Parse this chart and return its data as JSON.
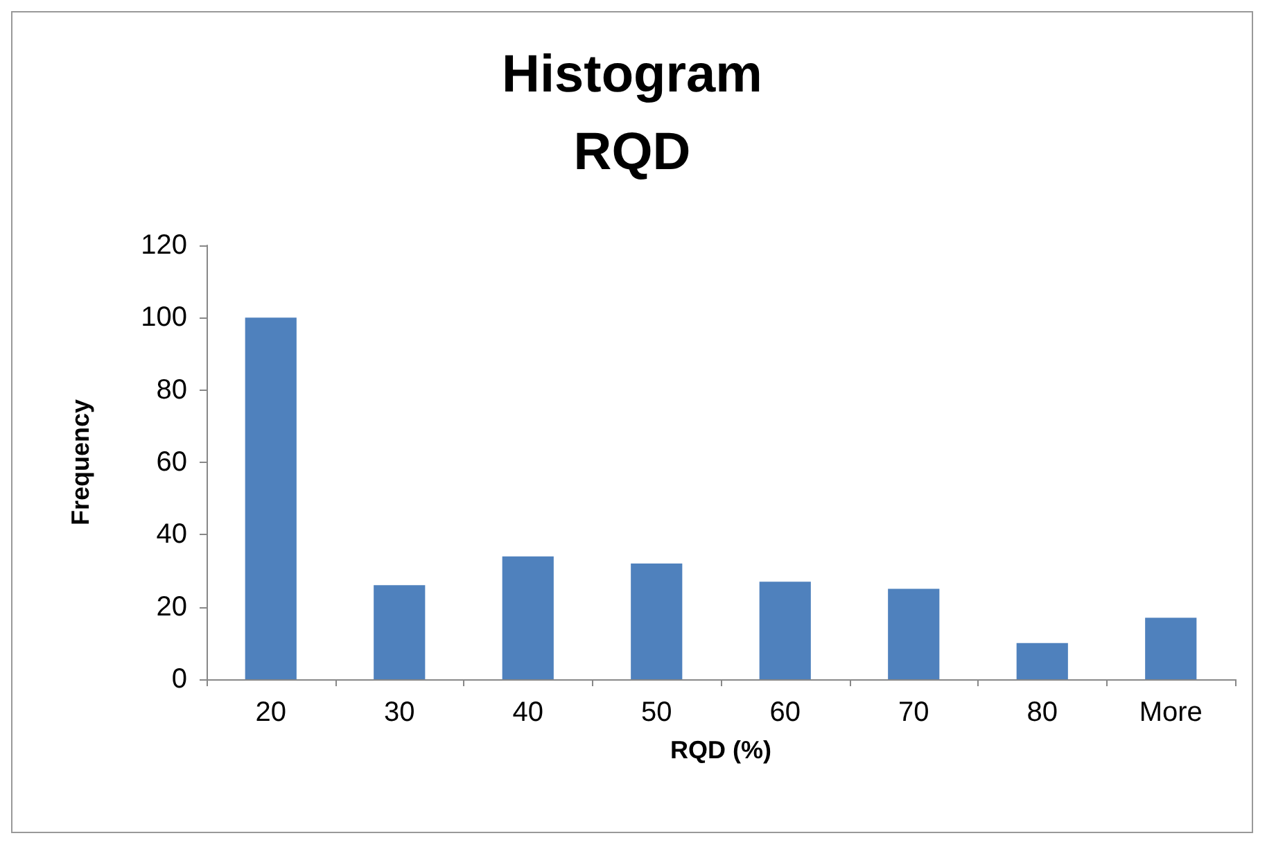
{
  "chart_data": {
    "type": "bar",
    "title": "Histogram\nRQD",
    "xlabel": "RQD (%)",
    "ylabel": "Frequency",
    "categories": [
      "20",
      "30",
      "40",
      "50",
      "60",
      "70",
      "80",
      "More"
    ],
    "values": [
      100,
      26,
      34,
      32,
      27,
      25,
      10,
      17
    ],
    "color": "#4f81bd",
    "ylim": [
      0,
      120
    ],
    "yticks": [
      0,
      20,
      40,
      60,
      80,
      100,
      120
    ],
    "grid": false
  }
}
